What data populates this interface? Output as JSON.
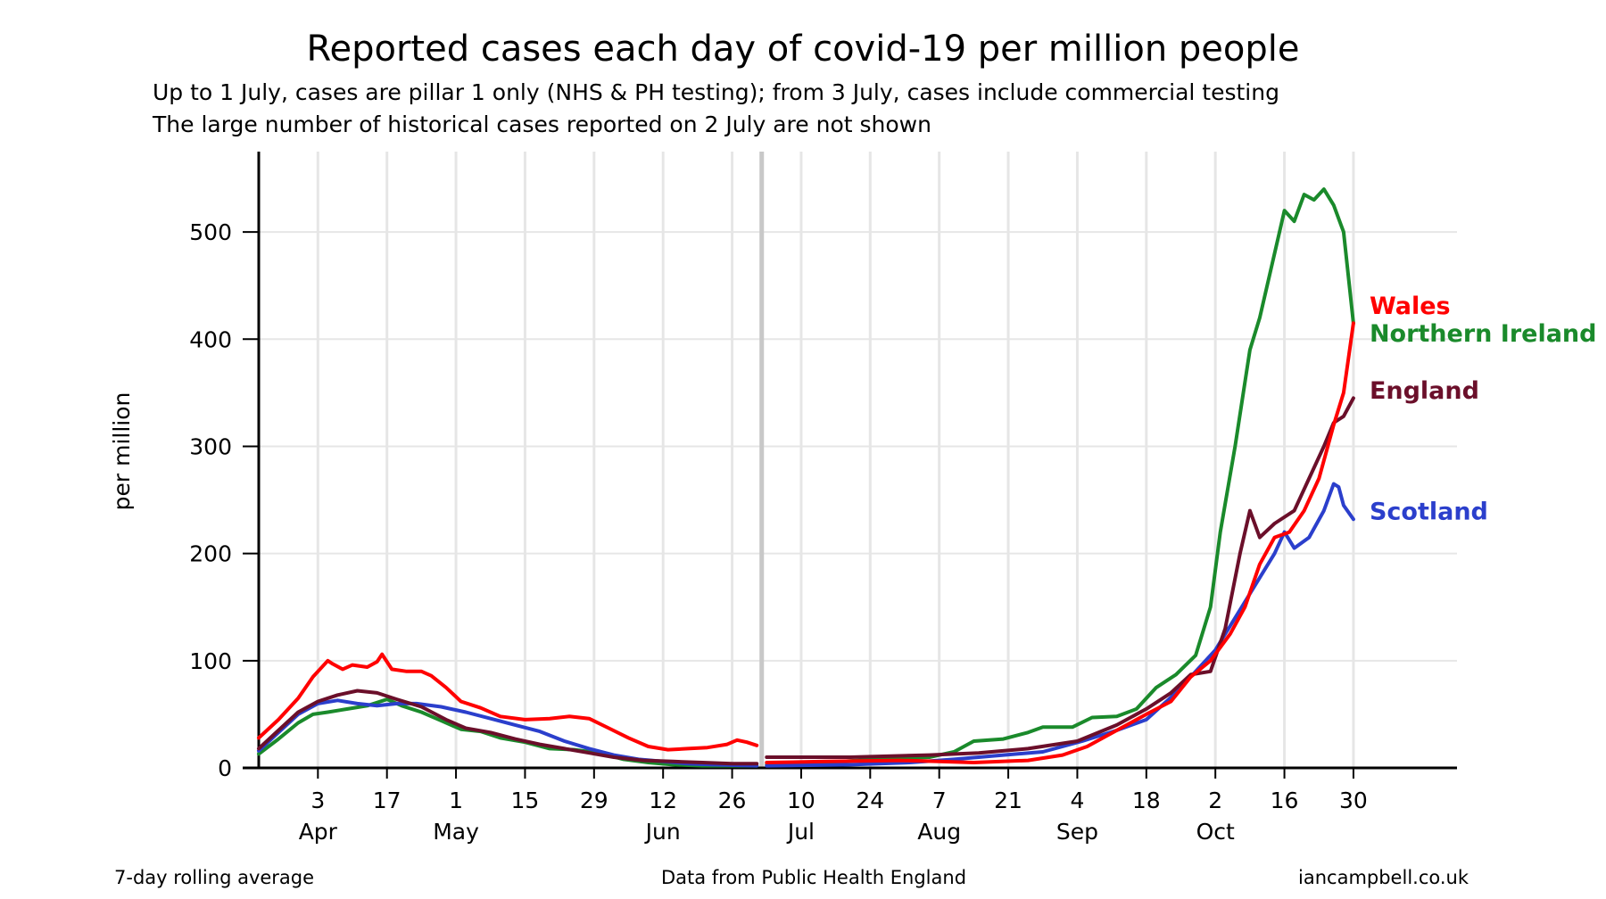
{
  "chart_data": {
    "type": "line",
    "title": "Reported cases each day of covid-19 per million people",
    "subtitle_lines": [
      "Up to 1 July, cases are pillar 1 only (NHS & PH testing); from 3 July, cases include commercial testing",
      "The large number of historical cases reported on 2 July are not shown"
    ],
    "ylabel": "per million",
    "ylim": [
      0,
      575
    ],
    "y_ticks": [
      0,
      100,
      200,
      300,
      400,
      500
    ],
    "x_range": [
      "2020-03-22",
      "2020-11-20"
    ],
    "break_date": "2020-07-02",
    "x_ticks": [
      {
        "date": "2020-04-03",
        "day": "3",
        "month": "Apr"
      },
      {
        "date": "2020-04-17",
        "day": "17",
        "month": ""
      },
      {
        "date": "2020-05-01",
        "day": "1",
        "month": "May"
      },
      {
        "date": "2020-05-15",
        "day": "15",
        "month": ""
      },
      {
        "date": "2020-05-29",
        "day": "29",
        "month": ""
      },
      {
        "date": "2020-06-12",
        "day": "12",
        "month": "Jun"
      },
      {
        "date": "2020-06-26",
        "day": "26",
        "month": ""
      },
      {
        "date": "2020-07-10",
        "day": "10",
        "month": "Jul"
      },
      {
        "date": "2020-07-24",
        "day": "24",
        "month": ""
      },
      {
        "date": "2020-08-07",
        "day": "7",
        "month": "Aug"
      },
      {
        "date": "2020-08-21",
        "day": "21",
        "month": ""
      },
      {
        "date": "2020-09-04",
        "day": "4",
        "month": "Sep"
      },
      {
        "date": "2020-09-18",
        "day": "18",
        "month": ""
      },
      {
        "date": "2020-10-02",
        "day": "2",
        "month": "Oct"
      },
      {
        "date": "2020-10-16",
        "day": "16",
        "month": ""
      },
      {
        "date": "2020-10-30",
        "day": "30",
        "month": ""
      }
    ],
    "grid": "vertical",
    "legend": "labels at right end of lines",
    "series": [
      {
        "name": "Wales",
        "color": "#ff0000",
        "segments": [
          [
            [
              "2020-03-22",
              28
            ],
            [
              "2020-03-26",
              45
            ],
            [
              "2020-03-30",
              65
            ],
            [
              "2020-04-02",
              85
            ],
            [
              "2020-04-05",
              100
            ],
            [
              "2020-04-06",
              97
            ],
            [
              "2020-04-08",
              92
            ],
            [
              "2020-04-10",
              96
            ],
            [
              "2020-04-13",
              94
            ],
            [
              "2020-04-15",
              99
            ],
            [
              "2020-04-16",
              106
            ],
            [
              "2020-04-18",
              92
            ],
            [
              "2020-04-21",
              90
            ],
            [
              "2020-04-24",
              90
            ],
            [
              "2020-04-26",
              86
            ],
            [
              "2020-04-29",
              75
            ],
            [
              "2020-05-02",
              62
            ],
            [
              "2020-05-06",
              56
            ],
            [
              "2020-05-10",
              48
            ],
            [
              "2020-05-15",
              45
            ],
            [
              "2020-05-20",
              46
            ],
            [
              "2020-05-24",
              48
            ],
            [
              "2020-05-28",
              46
            ],
            [
              "2020-06-01",
              37
            ],
            [
              "2020-06-05",
              28
            ],
            [
              "2020-06-09",
              20
            ],
            [
              "2020-06-13",
              17
            ],
            [
              "2020-06-17",
              18
            ],
            [
              "2020-06-21",
              19
            ],
            [
              "2020-06-25",
              22
            ],
            [
              "2020-06-27",
              26
            ],
            [
              "2020-06-29",
              24
            ],
            [
              "2020-07-01",
              21
            ]
          ],
          [
            [
              "2020-07-03",
              5
            ],
            [
              "2020-07-15",
              6
            ],
            [
              "2020-07-30",
              7
            ],
            [
              "2020-08-07",
              6
            ],
            [
              "2020-08-14",
              5
            ],
            [
              "2020-08-25",
              7
            ],
            [
              "2020-09-01",
              12
            ],
            [
              "2020-09-06",
              20
            ],
            [
              "2020-09-12",
              35
            ],
            [
              "2020-09-18",
              50
            ],
            [
              "2020-09-23",
              62
            ],
            [
              "2020-09-27",
              85
            ],
            [
              "2020-10-01",
              100
            ],
            [
              "2020-10-05",
              125
            ],
            [
              "2020-10-08",
              150
            ],
            [
              "2020-10-11",
              190
            ],
            [
              "2020-10-14",
              215
            ],
            [
              "2020-10-17",
              220
            ],
            [
              "2020-10-20",
              240
            ],
            [
              "2020-10-23",
              270
            ],
            [
              "2020-10-26",
              320
            ],
            [
              "2020-10-28",
              350
            ],
            [
              "2020-10-30",
              415
            ]
          ]
        ]
      },
      {
        "name": "Northern Ireland",
        "color": "#1a8a2b",
        "segments": [
          [
            [
              "2020-03-22",
              13
            ],
            [
              "2020-03-26",
              27
            ],
            [
              "2020-03-30",
              42
            ],
            [
              "2020-04-02",
              50
            ],
            [
              "2020-04-05",
              52
            ],
            [
              "2020-04-09",
              55
            ],
            [
              "2020-04-13",
              58
            ],
            [
              "2020-04-17",
              64
            ],
            [
              "2020-04-20",
              58
            ],
            [
              "2020-04-24",
              52
            ],
            [
              "2020-04-28",
              44
            ],
            [
              "2020-05-02",
              36
            ],
            [
              "2020-05-06",
              34
            ],
            [
              "2020-05-10",
              28
            ],
            [
              "2020-05-15",
              24
            ],
            [
              "2020-05-20",
              18
            ],
            [
              "2020-05-25",
              17
            ],
            [
              "2020-05-30",
              14
            ],
            [
              "2020-06-04",
              8
            ],
            [
              "2020-06-09",
              5
            ],
            [
              "2020-06-14",
              3
            ],
            [
              "2020-06-20",
              2
            ],
            [
              "2020-06-26",
              2
            ],
            [
              "2020-07-01",
              2
            ]
          ],
          [
            [
              "2020-07-03",
              3
            ],
            [
              "2020-07-15",
              5
            ],
            [
              "2020-07-25",
              8
            ],
            [
              "2020-08-05",
              10
            ],
            [
              "2020-08-10",
              15
            ],
            [
              "2020-08-14",
              25
            ],
            [
              "2020-08-20",
              27
            ],
            [
              "2020-08-25",
              33
            ],
            [
              "2020-08-28",
              38
            ],
            [
              "2020-09-03",
              38
            ],
            [
              "2020-09-07",
              47
            ],
            [
              "2020-09-12",
              48
            ],
            [
              "2020-09-16",
              55
            ],
            [
              "2020-09-20",
              75
            ],
            [
              "2020-09-24",
              87
            ],
            [
              "2020-09-28",
              105
            ],
            [
              "2020-10-01",
              150
            ],
            [
              "2020-10-03",
              220
            ],
            [
              "2020-10-06",
              300
            ],
            [
              "2020-10-09",
              390
            ],
            [
              "2020-10-11",
              420
            ],
            [
              "2020-10-13",
              460
            ],
            [
              "2020-10-16",
              520
            ],
            [
              "2020-10-18",
              510
            ],
            [
              "2020-10-20",
              535
            ],
            [
              "2020-10-22",
              530
            ],
            [
              "2020-10-24",
              540
            ],
            [
              "2020-10-26",
              525
            ],
            [
              "2020-10-28",
              500
            ],
            [
              "2020-10-30",
              415
            ]
          ]
        ]
      },
      {
        "name": "England",
        "color": "#6b0f2a",
        "segments": [
          [
            [
              "2020-03-22",
              18
            ],
            [
              "2020-03-26",
              35
            ],
            [
              "2020-03-30",
              52
            ],
            [
              "2020-04-03",
              62
            ],
            [
              "2020-04-07",
              68
            ],
            [
              "2020-04-11",
              72
            ],
            [
              "2020-04-15",
              70
            ],
            [
              "2020-04-19",
              64
            ],
            [
              "2020-04-24",
              57
            ],
            [
              "2020-04-29",
              45
            ],
            [
              "2020-05-03",
              37
            ],
            [
              "2020-05-08",
              33
            ],
            [
              "2020-05-13",
              27
            ],
            [
              "2020-05-18",
              22
            ],
            [
              "2020-05-23",
              18
            ],
            [
              "2020-05-28",
              14
            ],
            [
              "2020-06-02",
              10
            ],
            [
              "2020-06-08",
              7
            ],
            [
              "2020-06-14",
              6
            ],
            [
              "2020-06-20",
              5
            ],
            [
              "2020-06-26",
              4
            ],
            [
              "2020-07-01",
              4
            ]
          ],
          [
            [
              "2020-07-03",
              10
            ],
            [
              "2020-07-20",
              10
            ],
            [
              "2020-08-05",
              12
            ],
            [
              "2020-08-15",
              14
            ],
            [
              "2020-08-25",
              18
            ],
            [
              "2020-09-04",
              25
            ],
            [
              "2020-09-12",
              40
            ],
            [
              "2020-09-18",
              55
            ],
            [
              "2020-09-23",
              70
            ],
            [
              "2020-09-27",
              87
            ],
            [
              "2020-10-01",
              90
            ],
            [
              "2020-10-04",
              130
            ],
            [
              "2020-10-07",
              200
            ],
            [
              "2020-10-09",
              240
            ],
            [
              "2020-10-11",
              215
            ],
            [
              "2020-10-14",
              228
            ],
            [
              "2020-10-18",
              240
            ],
            [
              "2020-10-21",
              270
            ],
            [
              "2020-10-24",
              300
            ],
            [
              "2020-10-26",
              322
            ],
            [
              "2020-10-28",
              328
            ],
            [
              "2020-10-30",
              345
            ]
          ]
        ]
      },
      {
        "name": "Scotland",
        "color": "#2b3fcc",
        "segments": [
          [
            [
              "2020-03-22",
              16
            ],
            [
              "2020-03-26",
              33
            ],
            [
              "2020-03-30",
              50
            ],
            [
              "2020-04-03",
              60
            ],
            [
              "2020-04-07",
              63
            ],
            [
              "2020-04-11",
              60
            ],
            [
              "2020-04-15",
              58
            ],
            [
              "2020-04-19",
              60
            ],
            [
              "2020-04-23",
              60
            ],
            [
              "2020-04-28",
              57
            ],
            [
              "2020-05-03",
              52
            ],
            [
              "2020-05-08",
              46
            ],
            [
              "2020-05-13",
              40
            ],
            [
              "2020-05-18",
              34
            ],
            [
              "2020-05-23",
              25
            ],
            [
              "2020-05-28",
              18
            ],
            [
              "2020-06-02",
              12
            ],
            [
              "2020-06-07",
              8
            ],
            [
              "2020-06-12",
              6
            ],
            [
              "2020-06-17",
              4
            ],
            [
              "2020-06-22",
              3
            ],
            [
              "2020-07-01",
              2
            ]
          ],
          [
            [
              "2020-07-03",
              2
            ],
            [
              "2020-07-20",
              3
            ],
            [
              "2020-08-01",
              5
            ],
            [
              "2020-08-10",
              8
            ],
            [
              "2020-08-20",
              12
            ],
            [
              "2020-08-28",
              15
            ],
            [
              "2020-09-05",
              25
            ],
            [
              "2020-09-12",
              35
            ],
            [
              "2020-09-18",
              45
            ],
            [
              "2020-09-24",
              70
            ],
            [
              "2020-09-28",
              90
            ],
            [
              "2020-10-02",
              110
            ],
            [
              "2020-10-06",
              140
            ],
            [
              "2020-10-10",
              170
            ],
            [
              "2020-10-14",
              200
            ],
            [
              "2020-10-16",
              220
            ],
            [
              "2020-10-18",
              205
            ],
            [
              "2020-10-21",
              215
            ],
            [
              "2020-10-24",
              240
            ],
            [
              "2020-10-26",
              265
            ],
            [
              "2020-10-27",
              262
            ],
            [
              "2020-10-28",
              245
            ],
            [
              "2020-10-30",
              232
            ]
          ]
        ]
      }
    ],
    "end_labels": [
      {
        "series": "Wales",
        "text": "Wales",
        "color": "#ff0000",
        "value": 432
      },
      {
        "series": "Northern Ireland",
        "text": "Northern Ireland",
        "color": "#1a8a2b",
        "value": 406
      },
      {
        "series": "England",
        "text": "England",
        "color": "#6b0f2a",
        "value": 353
      },
      {
        "series": "Scotland",
        "text": "Scotland",
        "color": "#2b3fcc",
        "value": 240
      }
    ]
  },
  "footer": {
    "left": "7-day rolling average",
    "center": "Data from Public Health England",
    "right": "iancampbell.co.uk"
  }
}
